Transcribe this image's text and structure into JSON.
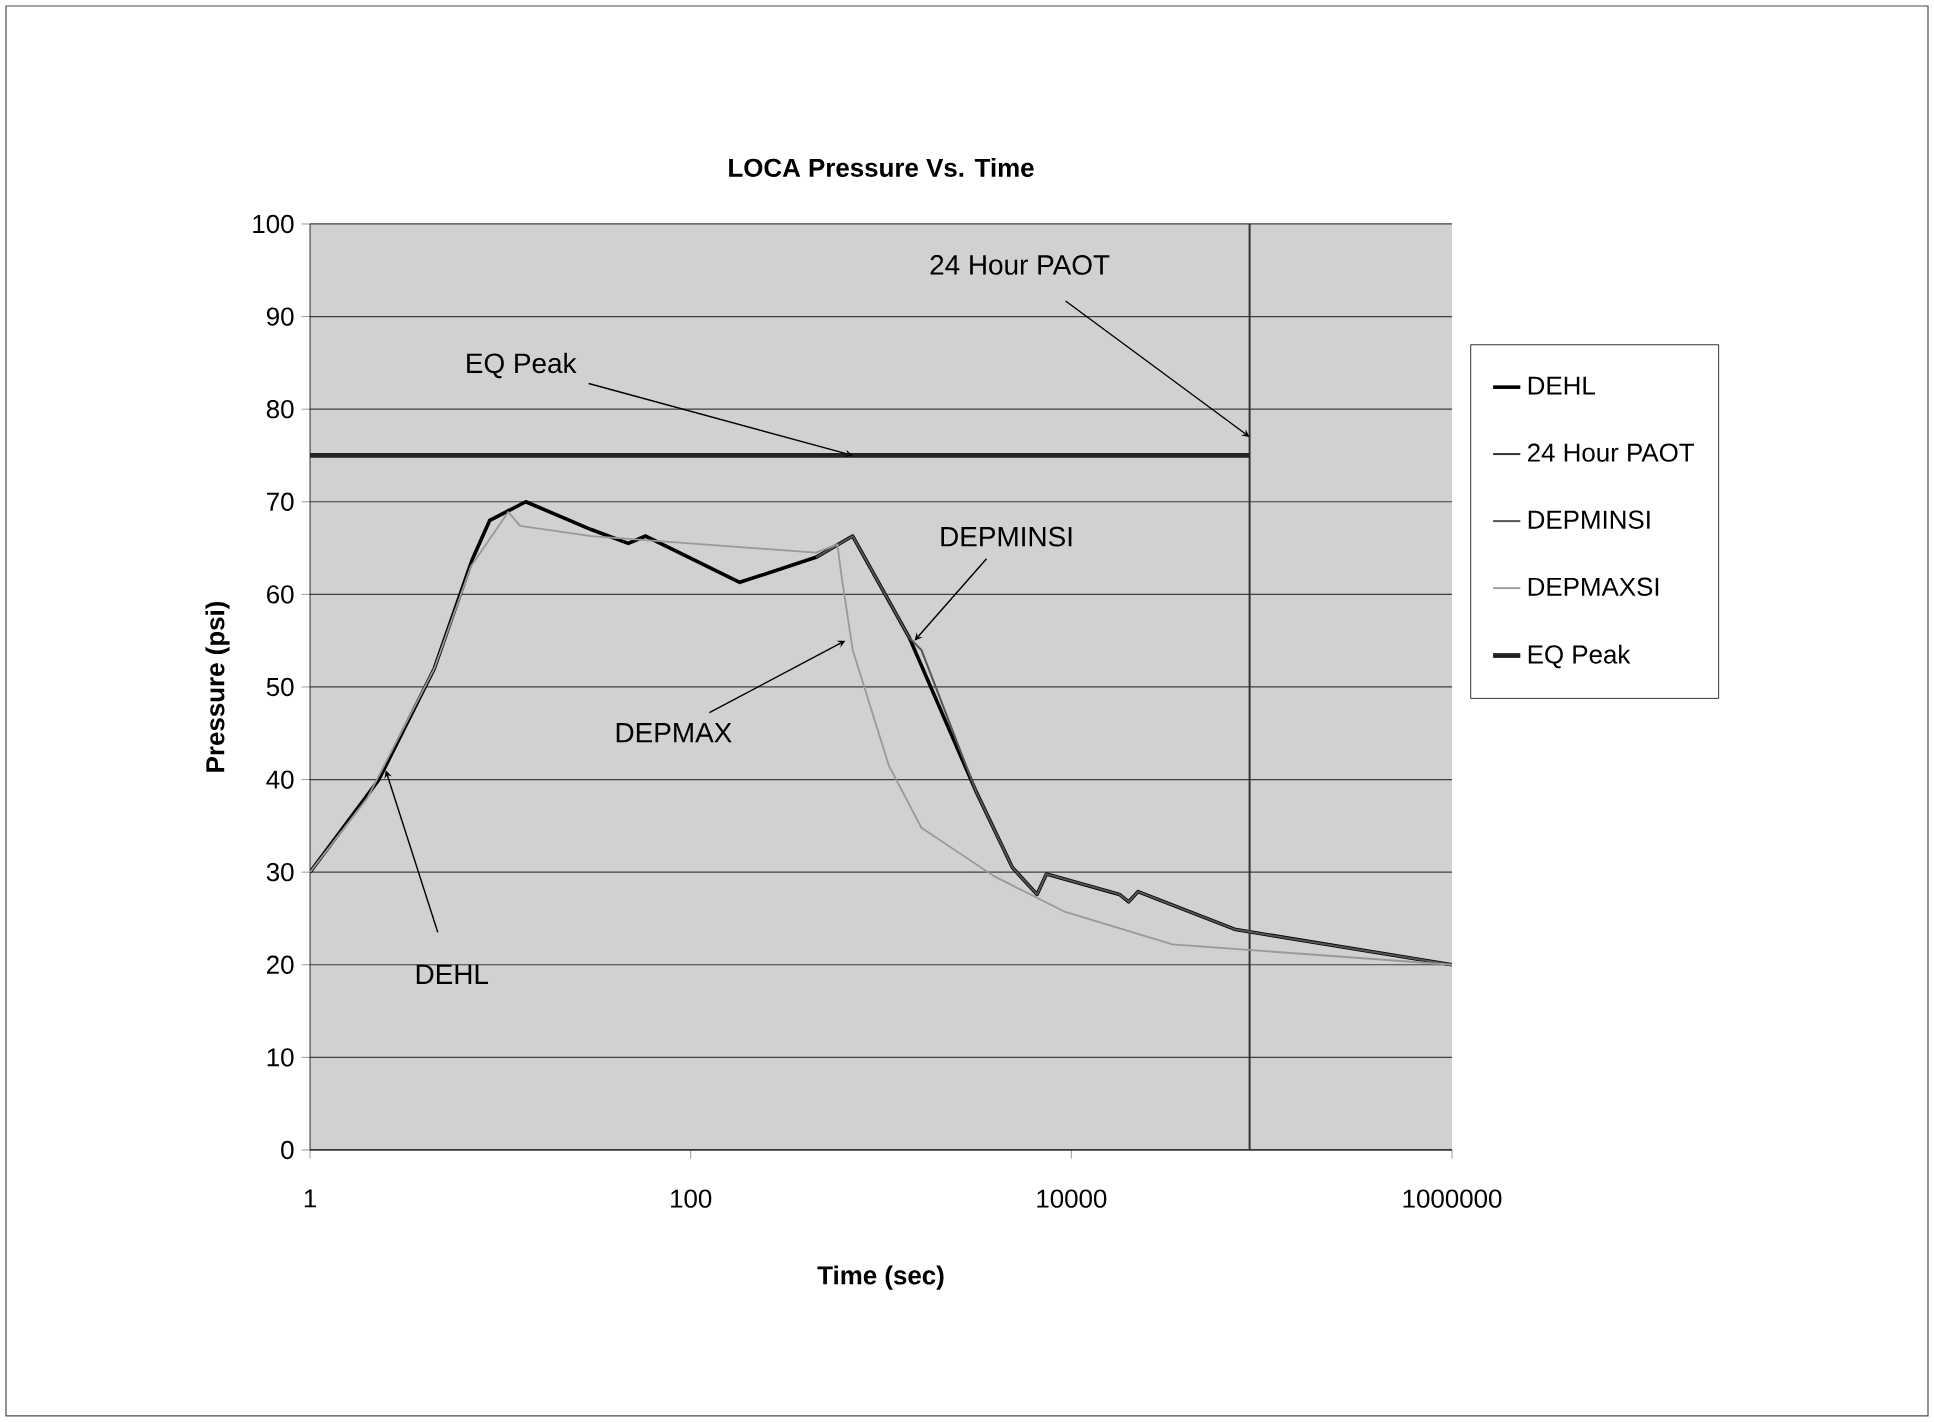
{
  "chart_data": {
    "type": "line",
    "title": "LOCA Pressure Vs. Time",
    "xlabel": "Time (sec)",
    "ylabel": "Pressure (psi)",
    "log": "x",
    "xlim": [
      1,
      1000000
    ],
    "xticks": [
      1,
      100,
      10000,
      1000000
    ],
    "ylim": [
      0,
      100
    ],
    "yticks": [
      0,
      10,
      20,
      30,
      40,
      50,
      60,
      70,
      80,
      90,
      100
    ],
    "grid": "y",
    "legend": "right",
    "marker": "none",
    "line_style": "solid",
    "series": [
      {
        "name": "DEHL",
        "color": "#000000",
        "x": [
          1,
          2.3,
          4.5,
          7.1,
          8.8,
          13.6,
          30,
          47,
          58,
          181,
          455,
          710,
          1410,
          3160,
          4900,
          6600,
          7400,
          17900,
          20000,
          22400,
          73000,
          1000000
        ],
        "values": [
          30,
          40,
          52,
          63.7,
          68,
          70,
          67,
          65.5,
          66.3,
          61.3,
          64,
          66.3,
          55.3,
          38.7,
          30.5,
          27.6,
          29.8,
          27.6,
          26.8,
          27.9,
          23.8,
          20
        ]
      },
      {
        "name": "24 Hour PAOT",
        "color": "#333333",
        "x": [
          86400,
          86400
        ],
        "values": [
          0,
          100
        ]
      },
      {
        "name": "DEPMINSI",
        "color": "#555555",
        "x": [
          455,
          710,
          1410,
          1630,
          3160,
          4900,
          6600,
          7400,
          17900,
          20000,
          22400,
          73000,
          1000000
        ],
        "values": [
          64,
          66.3,
          55.3,
          54,
          38.7,
          30.5,
          27.6,
          29.8,
          27.6,
          26.8,
          27.9,
          23.8,
          20
        ]
      },
      {
        "name": "DEPMAXSI",
        "color": "#999999",
        "x": [
          1,
          2,
          4.5,
          7,
          11,
          12.7,
          30,
          455,
          590,
          620,
          710,
          1100,
          1630,
          3900,
          9300,
          34000,
          1000000
        ],
        "values": [
          30,
          38,
          52,
          63,
          68.9,
          67.4,
          66.3,
          64.5,
          65.4,
          62,
          54,
          41.5,
          34.8,
          29.6,
          25.7,
          22.2,
          20
        ]
      },
      {
        "name": "EQ Peak",
        "color": "#222222",
        "x": [
          1,
          86400
        ],
        "values": [
          75,
          75
        ]
      }
    ],
    "annotations": [
      {
        "text": "DEHL",
        "x": 2.5,
        "y": 41
      },
      {
        "text": "EQ Peak",
        "x": 710,
        "y": 75
      },
      {
        "text": "24 Hour PAOT",
        "x": 86400,
        "y": 77
      },
      {
        "text": "DEPMINSI",
        "x": 1500,
        "y": 55
      },
      {
        "text": "DEPMAX",
        "x": 650,
        "y": 55
      }
    ]
  }
}
